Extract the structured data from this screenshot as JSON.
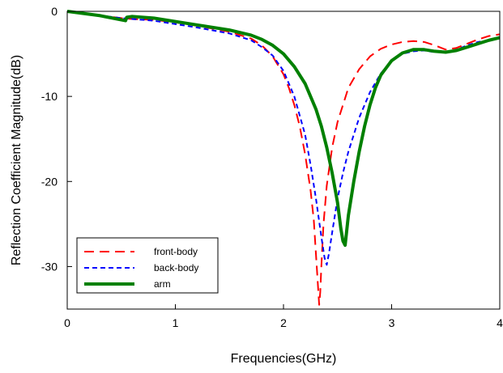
{
  "chart_data": {
    "type": "line",
    "title": "",
    "xlabel": "Frequencies(GHz)",
    "ylabel": "Reflection Coefficient Magnitude(dB)",
    "xlim": [
      0,
      4
    ],
    "ylim": [
      -35,
      0
    ],
    "xticks": [
      0,
      1,
      2,
      3,
      4
    ],
    "xtick_labels": [
      "0",
      "1",
      "2",
      "3",
      "4"
    ],
    "yticks": [
      0,
      -10,
      -20,
      -30
    ],
    "ytick_labels": [
      "0",
      "-10",
      "-20",
      "-30"
    ],
    "grid": false,
    "legend_position": "bottom-left",
    "series": [
      {
        "name": "front-body",
        "color": "#ff0000",
        "style": "long-dash",
        "x": [
          0,
          0.5,
          0.6,
          0.8,
          1.0,
          1.2,
          1.5,
          1.7,
          1.8,
          1.9,
          2.0,
          2.05,
          2.1,
          2.15,
          2.2,
          2.25,
          2.28,
          2.3,
          2.32,
          2.33,
          2.34,
          2.35,
          2.37,
          2.4,
          2.45,
          2.5,
          2.6,
          2.7,
          2.8,
          2.9,
          3.0,
          3.1,
          3.2,
          3.3,
          3.4,
          3.5,
          3.6,
          3.7,
          3.8,
          3.9,
          4.0
        ],
        "y": [
          0,
          -0.8,
          -0.9,
          -1.0,
          -1.3,
          -1.7,
          -2.4,
          -3.2,
          -4.0,
          -5.3,
          -7.4,
          -9.0,
          -11.0,
          -13.5,
          -16.8,
          -21.0,
          -24.5,
          -28.5,
          -32.5,
          -34.5,
          -33.0,
          -30.0,
          -25.0,
          -20.5,
          -16.0,
          -13.0,
          -9.0,
          -6.8,
          -5.3,
          -4.4,
          -3.9,
          -3.6,
          -3.5,
          -3.6,
          -4.0,
          -4.5,
          -4.3,
          -3.8,
          -3.3,
          -2.9,
          -2.7
        ]
      },
      {
        "name": "back-body",
        "color": "#0000ff",
        "style": "short-dash",
        "x": [
          0,
          0.5,
          0.6,
          0.8,
          1.0,
          1.2,
          1.5,
          1.7,
          1.8,
          1.9,
          2.0,
          2.1,
          2.2,
          2.25,
          2.3,
          2.35,
          2.38,
          2.4,
          2.42,
          2.45,
          2.5,
          2.55,
          2.6,
          2.7,
          2.8,
          2.9,
          3.0,
          3.1,
          3.2,
          3.3,
          3.4,
          3.5,
          3.6,
          3.7,
          3.8,
          3.9,
          4.0
        ],
        "y": [
          0,
          -0.8,
          -0.9,
          -1.1,
          -1.5,
          -1.9,
          -2.6,
          -3.4,
          -4.2,
          -5.2,
          -7.0,
          -10.0,
          -14.5,
          -18.0,
          -22.0,
          -26.5,
          -29.0,
          -29.8,
          -28.5,
          -26.0,
          -22.0,
          -19.0,
          -16.5,
          -12.5,
          -9.5,
          -7.3,
          -5.8,
          -5.0,
          -4.7,
          -4.6,
          -4.8,
          -4.8,
          -4.5,
          -4.0,
          -3.6,
          -3.4,
          -3.2
        ]
      },
      {
        "name": "arm",
        "color": "#008000",
        "style": "solid",
        "x": [
          0,
          0.3,
          0.54,
          0.55,
          0.6,
          0.8,
          1.0,
          1.2,
          1.5,
          1.7,
          1.8,
          1.9,
          2.0,
          2.1,
          2.2,
          2.3,
          2.35,
          2.4,
          2.45,
          2.5,
          2.53,
          2.55,
          2.57,
          2.6,
          2.65,
          2.7,
          2.75,
          2.8,
          2.85,
          2.9,
          3.0,
          3.1,
          3.2,
          3.3,
          3.4,
          3.5,
          3.6,
          3.7,
          3.8,
          3.9,
          4.0
        ],
        "y": [
          0,
          -0.5,
          -1.1,
          -0.7,
          -0.6,
          -0.8,
          -1.2,
          -1.6,
          -2.2,
          -2.8,
          -3.3,
          -4.0,
          -5.0,
          -6.5,
          -8.5,
          -11.5,
          -13.5,
          -16.0,
          -19.0,
          -22.5,
          -25.5,
          -27.0,
          -27.5,
          -24.0,
          -20.0,
          -16.5,
          -13.5,
          -11.0,
          -9.0,
          -7.5,
          -5.8,
          -4.9,
          -4.5,
          -4.5,
          -4.7,
          -4.8,
          -4.6,
          -4.2,
          -3.8,
          -3.4,
          -3.1
        ]
      }
    ]
  }
}
